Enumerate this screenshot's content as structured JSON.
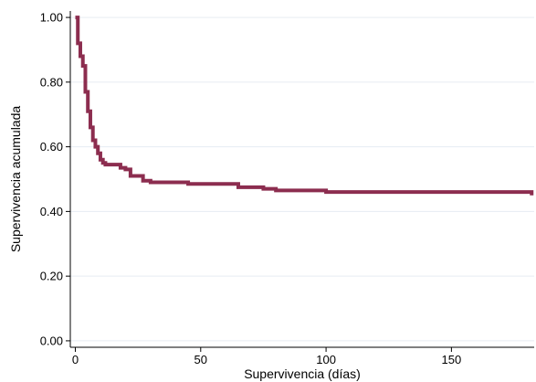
{
  "chart_data": {
    "type": "line",
    "title": "",
    "xlabel": "Supervivencia (días)",
    "ylabel": "Supervivencia acumulada",
    "xlim": [
      -2,
      183
    ],
    "ylim": [
      -0.02,
      1.02
    ],
    "x_ticks": [
      0,
      50,
      100,
      150
    ],
    "y_ticks": [
      0.0,
      0.2,
      0.4,
      0.6,
      0.8,
      1.0
    ],
    "x_tick_labels": [
      "0",
      "50",
      "100",
      "150"
    ],
    "y_tick_labels": [
      "0.00",
      "0.20",
      "0.40",
      "0.60",
      "0.80",
      "1.00"
    ],
    "grid": "horizontal",
    "legend": "none",
    "line_style": "step",
    "colors": {
      "series": "#8c2d4f",
      "grid": "#e6ecf2",
      "axis": "#000000"
    },
    "series": [
      {
        "x": [
          0,
          1,
          2,
          3,
          4,
          5,
          6,
          7,
          8,
          9,
          10,
          11,
          12,
          13,
          15,
          18,
          20,
          22,
          25,
          27,
          30,
          35,
          40,
          45,
          50,
          55,
          60,
          65,
          70,
          75,
          80,
          90,
          100,
          120,
          150,
          175,
          182
        ],
        "y": [
          1.0,
          0.92,
          0.88,
          0.85,
          0.77,
          0.71,
          0.66,
          0.62,
          0.6,
          0.58,
          0.56,
          0.55,
          0.545,
          0.545,
          0.545,
          0.535,
          0.53,
          0.51,
          0.51,
          0.495,
          0.49,
          0.49,
          0.49,
          0.485,
          0.485,
          0.485,
          0.485,
          0.475,
          0.475,
          0.47,
          0.465,
          0.465,
          0.46,
          0.46,
          0.46,
          0.46,
          0.45
        ]
      }
    ]
  }
}
